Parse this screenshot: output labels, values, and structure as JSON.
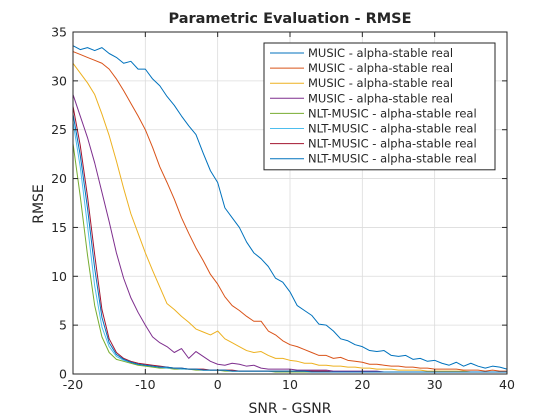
{
  "chart_data": {
    "type": "line",
    "title": "Parametric Evaluation - RMSE",
    "xlabel": "SNR - GSNR",
    "ylabel": "RMSE",
    "xlim": [
      -20,
      40
    ],
    "ylim": [
      0,
      35
    ],
    "x_ticks": [
      "-20",
      "-10",
      "0",
      "10",
      "20",
      "30",
      "40"
    ],
    "y_ticks": [
      "0",
      "5",
      "10",
      "15",
      "20",
      "25",
      "30",
      "35"
    ],
    "grid": true,
    "legend_position": "top-right",
    "series": [
      {
        "name": "MUSIC - alpha-stable real",
        "color": "#0072BD",
        "x": [
          -20,
          -19,
          -18,
          -17,
          -16,
          -15,
          -14,
          -13,
          -12,
          -11,
          -10,
          -9,
          -8,
          -7,
          -6,
          -5,
          -4,
          -3,
          -2,
          -1,
          0,
          1,
          2,
          3,
          4,
          5,
          6,
          7,
          8,
          9,
          10,
          11,
          12,
          13,
          14,
          15,
          16,
          17,
          18,
          19,
          20,
          21,
          22,
          23,
          24,
          25,
          26,
          27,
          28,
          29,
          30,
          31,
          32,
          33,
          34,
          35,
          36,
          37,
          38,
          39,
          40
        ],
        "y": [
          33.6,
          33.2,
          33.4,
          33.1,
          33.4,
          32.8,
          32.4,
          31.8,
          32.0,
          31.2,
          31.2,
          30.2,
          29.5,
          28.4,
          27.5,
          26.4,
          25.4,
          24.5,
          22.6,
          20.8,
          19.6,
          17.0,
          16.0,
          15.0,
          13.5,
          12.4,
          11.8,
          11.0,
          9.8,
          9.4,
          8.4,
          7.0,
          6.5,
          6.0,
          5.1,
          5.0,
          4.4,
          3.6,
          3.4,
          3.0,
          2.8,
          2.4,
          2.3,
          2.4,
          1.9,
          1.8,
          1.9,
          1.5,
          1.6,
          1.3,
          1.4,
          1.1,
          0.9,
          1.2,
          0.8,
          1.1,
          0.8,
          0.6,
          0.8,
          0.7,
          0.5
        ]
      },
      {
        "name": "MUSIC - alpha-stable real",
        "color": "#D95319",
        "x": [
          -20,
          -19,
          -18,
          -17,
          -16,
          -15,
          -14,
          -13,
          -12,
          -11,
          -10,
          -9,
          -8,
          -7,
          -6,
          -5,
          -4,
          -3,
          -2,
          -1,
          0,
          1,
          2,
          3,
          4,
          5,
          6,
          7,
          8,
          9,
          10,
          11,
          12,
          13,
          14,
          15,
          16,
          17,
          18,
          19,
          20,
          21,
          22,
          23,
          24,
          25,
          26,
          27,
          28,
          29,
          30,
          31,
          32,
          33,
          34,
          35,
          36,
          37,
          38,
          39,
          40
        ],
        "y": [
          33.0,
          32.7,
          32.4,
          32.1,
          31.8,
          31.2,
          30.2,
          29.0,
          27.7,
          26.4,
          25.0,
          23.2,
          21.2,
          19.6,
          17.9,
          16.0,
          14.4,
          12.9,
          11.6,
          10.2,
          9.2,
          7.9,
          7.0,
          6.5,
          5.9,
          5.4,
          5.4,
          4.4,
          4.0,
          3.4,
          3.0,
          2.8,
          2.5,
          2.2,
          1.9,
          1.9,
          1.6,
          1.7,
          1.4,
          1.3,
          1.2,
          1.0,
          1.0,
          0.9,
          0.8,
          0.8,
          0.7,
          0.7,
          0.6,
          0.6,
          0.5,
          0.5,
          0.5,
          0.5,
          0.4,
          0.4,
          0.4,
          0.3,
          0.4,
          0.3,
          0.3
        ]
      },
      {
        "name": "MUSIC - alpha-stable real",
        "color": "#EDB120",
        "x": [
          -20,
          -19,
          -18,
          -17,
          -16,
          -15,
          -14,
          -13,
          -12,
          -11,
          -10,
          -9,
          -8,
          -7,
          -6,
          -5,
          -4,
          -3,
          -2,
          -1,
          0,
          1,
          2,
          3,
          4,
          5,
          6,
          7,
          8,
          9,
          10,
          11,
          12,
          13,
          14,
          15,
          16,
          17,
          18,
          19,
          20,
          21,
          22,
          23,
          24,
          25,
          26,
          27,
          28,
          29,
          30,
          31,
          32,
          33,
          34,
          35,
          36,
          37,
          38,
          39,
          40
        ],
        "y": [
          31.8,
          30.8,
          29.8,
          28.6,
          26.6,
          24.4,
          21.8,
          19.0,
          16.4,
          14.4,
          12.4,
          10.6,
          8.9,
          7.2,
          6.6,
          5.9,
          5.3,
          4.6,
          4.3,
          4.0,
          4.4,
          3.6,
          3.2,
          2.8,
          2.4,
          2.2,
          2.3,
          1.9,
          1.6,
          1.6,
          1.4,
          1.3,
          1.1,
          1.1,
          0.9,
          0.9,
          0.8,
          0.8,
          0.7,
          0.7,
          0.6,
          0.6,
          0.5,
          0.5,
          0.5,
          0.4,
          0.4,
          0.4,
          0.4,
          0.3,
          0.3,
          0.3,
          0.3,
          0.3,
          0.3,
          0.2,
          0.2,
          0.2,
          0.2,
          0.2,
          0.2
        ]
      },
      {
        "name": "MUSIC - alpha-stable real",
        "color": "#7E2F8E",
        "x": [
          -20,
          -19,
          -18,
          -17,
          -16,
          -15,
          -14,
          -13,
          -12,
          -11,
          -10,
          -9,
          -8,
          -7,
          -6,
          -5,
          -4,
          -3,
          -2,
          -1,
          0,
          1,
          2,
          3,
          4,
          5,
          6,
          7,
          8,
          9,
          10,
          11,
          12,
          13,
          14,
          15,
          16,
          17,
          18,
          19,
          20,
          21,
          22,
          23,
          24,
          25,
          26,
          27,
          28,
          29,
          30,
          31,
          32,
          33,
          34,
          35,
          36,
          37,
          38,
          39,
          40
        ],
        "y": [
          28.6,
          26.4,
          24.2,
          21.6,
          18.6,
          15.6,
          12.4,
          9.8,
          7.8,
          6.3,
          5.0,
          3.8,
          3.2,
          2.8,
          2.2,
          2.6,
          1.6,
          2.3,
          1.8,
          1.3,
          1.0,
          0.9,
          1.1,
          1.0,
          0.8,
          0.9,
          0.6,
          0.5,
          0.5,
          0.5,
          0.5,
          0.4,
          0.4,
          0.4,
          0.4,
          0.4,
          0.3,
          0.3,
          0.3,
          0.3,
          0.3,
          0.3,
          0.3,
          0.2,
          0.2,
          0.2,
          0.2,
          0.2,
          0.2,
          0.2,
          0.2,
          0.2,
          0.2,
          0.2,
          0.2,
          0.2,
          0.2,
          0.2,
          0.2,
          0.2,
          0.2
        ]
      },
      {
        "name": "NLT-MUSIC - alpha-stable real",
        "color": "#77AC30",
        "x": [
          -20,
          -19,
          -18,
          -17,
          -16,
          -15,
          -14,
          -13,
          -12,
          -11,
          -10,
          -9,
          -8,
          -7,
          -6,
          -5,
          -4,
          -3,
          -2,
          -1,
          0,
          1,
          2,
          3,
          4,
          5,
          6,
          7,
          8,
          9,
          10,
          11,
          12,
          13,
          14,
          15,
          16,
          17,
          18,
          19,
          20,
          21,
          22,
          23,
          24,
          25,
          26,
          27,
          28,
          29,
          30,
          31,
          32,
          33,
          34,
          35,
          36,
          37,
          38,
          39,
          40
        ],
        "y": [
          23.6,
          18.2,
          12.2,
          7.0,
          3.8,
          2.2,
          1.5,
          1.3,
          1.1,
          0.9,
          0.8,
          0.7,
          0.6,
          0.6,
          0.5,
          0.5,
          0.5,
          0.4,
          0.4,
          0.4,
          0.4,
          0.3,
          0.3,
          0.3,
          0.3,
          0.3,
          0.3,
          0.3,
          0.2,
          0.2,
          0.2,
          0.2,
          0.2,
          0.2,
          0.2,
          0.2,
          0.2,
          0.2,
          0.2,
          0.2,
          0.2,
          0.2,
          0.2,
          0.2,
          0.2,
          0.2,
          0.2,
          0.2,
          0.2,
          0.2,
          0.2,
          0.2,
          0.2,
          0.2,
          0.2,
          0.2,
          0.2,
          0.2,
          0.2,
          0.2,
          0.2
        ]
      },
      {
        "name": "NLT-MUSIC - alpha-stable real",
        "color": "#4DBEEE",
        "x": [
          -20,
          -19,
          -18,
          -17,
          -16,
          -15,
          -14,
          -13,
          -12,
          -11,
          -10,
          -9,
          -8,
          -7,
          -6,
          -5,
          -4,
          -3,
          -2,
          -1,
          0,
          1,
          2,
          3,
          4,
          5,
          6,
          7,
          8,
          9,
          10,
          11,
          12,
          13,
          14,
          15,
          16,
          17,
          18,
          19,
          20,
          21,
          22,
          23,
          24,
          25,
          26,
          27,
          28,
          29,
          30,
          31,
          32,
          33,
          34,
          35,
          36,
          37,
          38,
          39,
          40
        ],
        "y": [
          25.8,
          21.2,
          15.2,
          9.0,
          4.8,
          2.8,
          1.8,
          1.4,
          1.2,
          1.0,
          0.9,
          0.8,
          0.7,
          0.6,
          0.6,
          0.5,
          0.5,
          0.5,
          0.4,
          0.4,
          0.4,
          0.4,
          0.3,
          0.3,
          0.3,
          0.3,
          0.3,
          0.3,
          0.3,
          0.3,
          0.3,
          0.3,
          0.3,
          0.3,
          0.2,
          0.2,
          0.2,
          0.2,
          0.2,
          0.2,
          0.2,
          0.2,
          0.2,
          0.2,
          0.2,
          0.2,
          0.2,
          0.2,
          0.2,
          0.2,
          0.2,
          0.2,
          0.2,
          0.2,
          0.2,
          0.2,
          0.2,
          0.2,
          0.2,
          0.2,
          0.2
        ]
      },
      {
        "name": "NLT-MUSIC - alpha-stable real",
        "color": "#A2142F",
        "x": [
          -20,
          -19,
          -18,
          -17,
          -16,
          -15,
          -14,
          -13,
          -12,
          -11,
          -10,
          -9,
          -8,
          -7,
          -6,
          -5,
          -4,
          -3,
          -2,
          -1,
          0,
          1,
          2,
          3,
          4,
          5,
          6,
          7,
          8,
          9,
          10,
          11,
          12,
          13,
          14,
          15,
          16,
          17,
          18,
          19,
          20,
          21,
          22,
          23,
          24,
          25,
          26,
          27,
          28,
          29,
          30,
          31,
          32,
          33,
          34,
          35,
          36,
          37,
          38,
          39,
          40
        ],
        "y": [
          27.4,
          23.4,
          18.2,
          12.2,
          6.6,
          3.6,
          2.2,
          1.6,
          1.3,
          1.1,
          1.0,
          0.9,
          0.8,
          0.7,
          0.6,
          0.6,
          0.5,
          0.5,
          0.5,
          0.4,
          0.4,
          0.4,
          0.4,
          0.3,
          0.3,
          0.3,
          0.3,
          0.3,
          0.3,
          0.3,
          0.3,
          0.3,
          0.3,
          0.3,
          0.3,
          0.3,
          0.2,
          0.2,
          0.2,
          0.2,
          0.2,
          0.2,
          0.2,
          0.2,
          0.2,
          0.2,
          0.2,
          0.2,
          0.2,
          0.2,
          0.2,
          0.2,
          0.2,
          0.2,
          0.2,
          0.2,
          0.2,
          0.2,
          0.2,
          0.2,
          0.2
        ]
      },
      {
        "name": "NLT-MUSIC - alpha-stable real",
        "color": "#0072BD",
        "x": [
          -20,
          -19,
          -18,
          -17,
          -16,
          -15,
          -14,
          -13,
          -12,
          -11,
          -10,
          -9,
          -8,
          -7,
          -6,
          -5,
          -4,
          -3,
          -2,
          -1,
          0,
          1,
          2,
          3,
          4,
          5,
          6,
          7,
          8,
          9,
          10,
          11,
          12,
          13,
          14,
          15,
          16,
          17,
          18,
          19,
          20,
          21,
          22,
          23,
          24,
          25,
          26,
          27,
          28,
          29,
          30,
          31,
          32,
          33,
          34,
          35,
          36,
          37,
          38,
          39,
          40
        ],
        "y": [
          26.6,
          22.4,
          17.0,
          10.8,
          5.8,
          3.2,
          2.0,
          1.5,
          1.2,
          1.0,
          0.9,
          0.8,
          0.7,
          0.7,
          0.6,
          0.6,
          0.5,
          0.5,
          0.4,
          0.4,
          0.4,
          0.4,
          0.3,
          0.3,
          0.3,
          0.3,
          0.3,
          0.3,
          0.3,
          0.3,
          0.3,
          0.3,
          0.3,
          0.2,
          0.2,
          0.2,
          0.2,
          0.2,
          0.2,
          0.2,
          0.2,
          0.2,
          0.2,
          0.2,
          0.2,
          0.2,
          0.2,
          0.2,
          0.2,
          0.2,
          0.2,
          0.2,
          0.2,
          0.2,
          0.2,
          0.2,
          0.2,
          0.2,
          0.2,
          0.2,
          0.2
        ]
      }
    ]
  }
}
